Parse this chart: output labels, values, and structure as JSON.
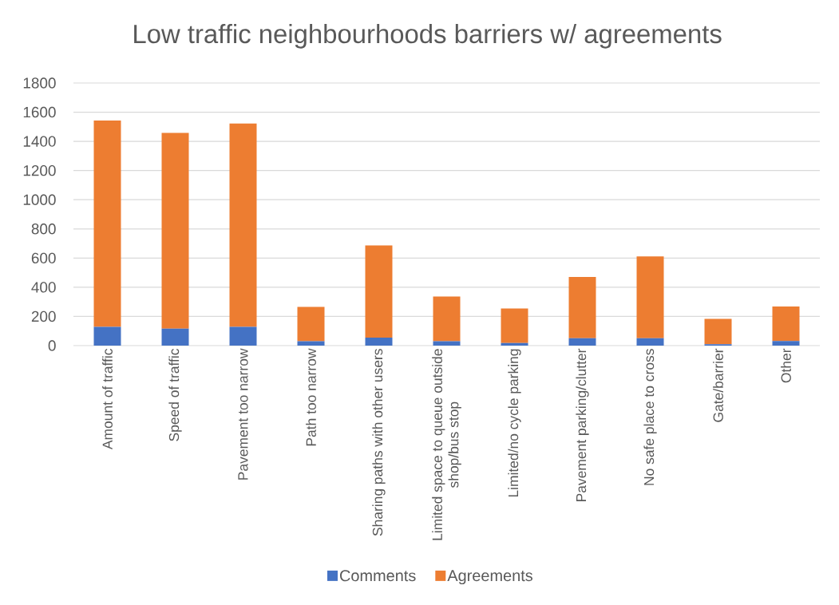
{
  "chart_data": {
    "type": "bar",
    "title": "Low traffic neighbourhoods barriers w/ agreements",
    "categories": [
      "Amount of traffic",
      "Speed of traffic",
      "Pavement too narrow",
      "Path too narrow",
      "Sharing paths with other users",
      "Limited space to queue outside shop/bus stop",
      "Limited/no cycle parking",
      "Pavement parking/clutter",
      "No safe place to cross",
      "Gate/barrier",
      "Other"
    ],
    "series": [
      {
        "name": "Comments",
        "color": "#4472c4",
        "values": [
          128,
          116,
          128,
          30,
          55,
          30,
          18,
          50,
          50,
          9,
          31
        ]
      },
      {
        "name": "Agreements",
        "color": "#ed7d31",
        "values": [
          1415,
          1342,
          1395,
          236,
          631,
          306,
          237,
          421,
          562,
          174,
          237
        ]
      }
    ],
    "stacked": true,
    "ylim": [
      0,
      1800
    ],
    "yticks": [
      0,
      200,
      400,
      600,
      800,
      1000,
      1200,
      1400,
      1600,
      1800
    ],
    "grid": "y",
    "legend": "bottom"
  }
}
